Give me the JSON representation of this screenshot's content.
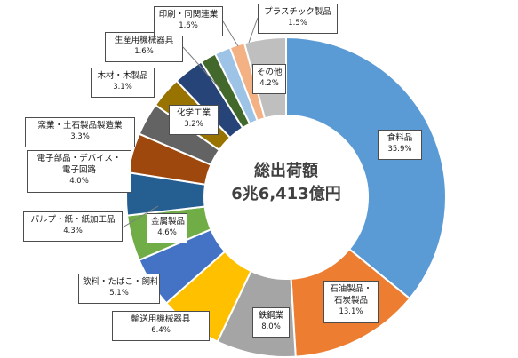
{
  "chart_data": {
    "type": "pie",
    "center_text": [
      "総出荷額",
      "6兆6,413億円"
    ],
    "slices": [
      {
        "label": [
          "食料品"
        ],
        "pct_label": "35.9%",
        "value": 35.9,
        "color": "#5B9BD5"
      },
      {
        "label": [
          "石油製品・",
          "石炭製品"
        ],
        "pct_label": "13.1%",
        "value": 13.1,
        "color": "#ED7D31"
      },
      {
        "label": [
          "鉄鋼業"
        ],
        "pct_label": "8.0%",
        "value": 8.0,
        "color": "#A5A5A5"
      },
      {
        "label": [
          "輸送用機械器具"
        ],
        "pct_label": "6.4%",
        "value": 6.4,
        "color": "#FFC000"
      },
      {
        "label": [
          "飲料・たばこ・飼料"
        ],
        "pct_label": "5.1%",
        "value": 5.1,
        "color": "#4472C4"
      },
      {
        "label": [
          "金属製品"
        ],
        "pct_label": "4.6%",
        "value": 4.6,
        "color": "#70AD47"
      },
      {
        "label": [
          "パルプ・紙・紙加工品"
        ],
        "pct_label": "4.3%",
        "value": 4.3,
        "color": "#255E91"
      },
      {
        "label": [
          "電子部品・デバイス・",
          "電子回路"
        ],
        "pct_label": "4.0%",
        "value": 4.0,
        "color": "#9E480E"
      },
      {
        "label": [
          "窯業・土石製品製造業"
        ],
        "pct_label": "3.3%",
        "value": 3.3,
        "color": "#636363"
      },
      {
        "label": [
          "化学工業"
        ],
        "pct_label": "3.2%",
        "value": 3.2,
        "color": "#997300"
      },
      {
        "label": [
          "木材・木製品"
        ],
        "pct_label": "3.1%",
        "value": 3.1,
        "color": "#264478"
      },
      {
        "label": [
          "生産用機械器具"
        ],
        "pct_label": "1.6%",
        "value": 1.6,
        "color": "#43682B"
      },
      {
        "label": [
          "印刷・同関連業"
        ],
        "pct_label": "1.6%",
        "value": 1.6,
        "color": "#9DC3E6"
      },
      {
        "label": [
          "プラスチック製品"
        ],
        "pct_label": "1.5%",
        "value": 1.5,
        "color": "#F4B183"
      },
      {
        "label": [
          "その他"
        ],
        "pct_label": "4.2%",
        "value": 4.2,
        "color": "#BFBFBF"
      }
    ]
  }
}
